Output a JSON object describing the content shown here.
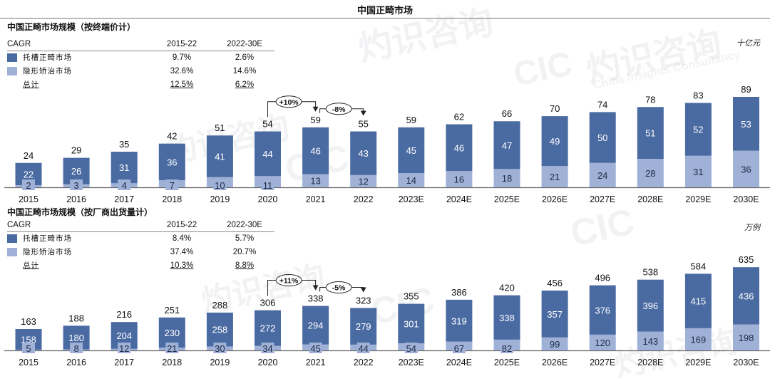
{
  "title": "中国正畸市场",
  "watermark": {
    "logo": "CIC",
    "cn": "灼识咨询",
    "en": "China Insights Consultancy"
  },
  "colors": {
    "dark_series": "#4a6aa2",
    "light_series": "#9fb1d6",
    "axis": "#666666"
  },
  "chart_data": [
    {
      "type": "bar",
      "stacked": true,
      "title": "中国正畸市场规模（按终端价计）",
      "unit": "十亿元",
      "categories": [
        "2015",
        "2016",
        "2017",
        "2018",
        "2019",
        "2020",
        "2021",
        "2022",
        "2023E",
        "2024E",
        "2025E",
        "2026E",
        "2027E",
        "2028E",
        "2029E",
        "2030E"
      ],
      "series": [
        {
          "name": "托槽正畸市场",
          "values": [
            22,
            26,
            31,
            36,
            41,
            44,
            46,
            43,
            45,
            46,
            47,
            49,
            50,
            51,
            52,
            53
          ]
        },
        {
          "name": "隐形矫治市场",
          "values": [
            2,
            3,
            4,
            7,
            10,
            11,
            13,
            12,
            14,
            16,
            18,
            21,
            24,
            28,
            31,
            36
          ]
        }
      ],
      "totals": [
        24,
        29,
        35,
        42,
        51,
        54,
        59,
        55,
        59,
        62,
        66,
        70,
        74,
        78,
        83,
        89
      ],
      "cagr": {
        "header": [
          "CAGR",
          "2015-22",
          "2022-30E"
        ],
        "rows": [
          {
            "label": "托槽正畸市场",
            "v1": "9.7%",
            "v2": "2.6%"
          },
          {
            "label": "隐形矫治市场",
            "v1": "32.6%",
            "v2": "14.6%"
          },
          {
            "label": "总计",
            "v1": "12.5%",
            "v2": "6.2%"
          }
        ]
      },
      "annotations": [
        {
          "from": "2020",
          "to": "2021",
          "label": "+10%"
        },
        {
          "from": "2021",
          "to": "2022",
          "label": "-8%"
        }
      ],
      "ylim": [
        0,
        89
      ],
      "grid": false
    },
    {
      "type": "bar",
      "stacked": true,
      "title": "中国正畸市场规模（按厂商出货量计）",
      "unit": "万例",
      "categories": [
        "2015",
        "2016",
        "2017",
        "2018",
        "2019",
        "2020",
        "2021",
        "2022",
        "2023E",
        "2024E",
        "2025E",
        "2026E",
        "2027E",
        "2028E",
        "2029E",
        "2030E"
      ],
      "series": [
        {
          "name": "托槽正畸市场",
          "values": [
            158,
            180,
            204,
            230,
            258,
            272,
            294,
            279,
            301,
            319,
            338,
            357,
            376,
            396,
            415,
            436
          ]
        },
        {
          "name": "隐形矫治市场",
          "values": [
            5,
            8,
            12,
            21,
            30,
            34,
            45,
            44,
            54,
            67,
            82,
            99,
            120,
            143,
            169,
            198
          ]
        }
      ],
      "totals": [
        163,
        188,
        216,
        251,
        288,
        306,
        338,
        323,
        355,
        386,
        420,
        456,
        496,
        538,
        584,
        635
      ],
      "cagr": {
        "header": [
          "CAGR",
          "2015-22",
          "2022-30E"
        ],
        "rows": [
          {
            "label": "托槽正畸市场",
            "v1": "8.4%",
            "v2": "5.7%"
          },
          {
            "label": "隐形矫治市场",
            "v1": "37.4%",
            "v2": "20.7%"
          },
          {
            "label": "总计",
            "v1": "10.3%",
            "v2": "8.8%"
          }
        ]
      },
      "annotations": [
        {
          "from": "2020",
          "to": "2021",
          "label": "+11%"
        },
        {
          "from": "2021",
          "to": "2022",
          "label": "-5%"
        }
      ],
      "ylim": [
        0,
        635
      ],
      "grid": false
    }
  ]
}
